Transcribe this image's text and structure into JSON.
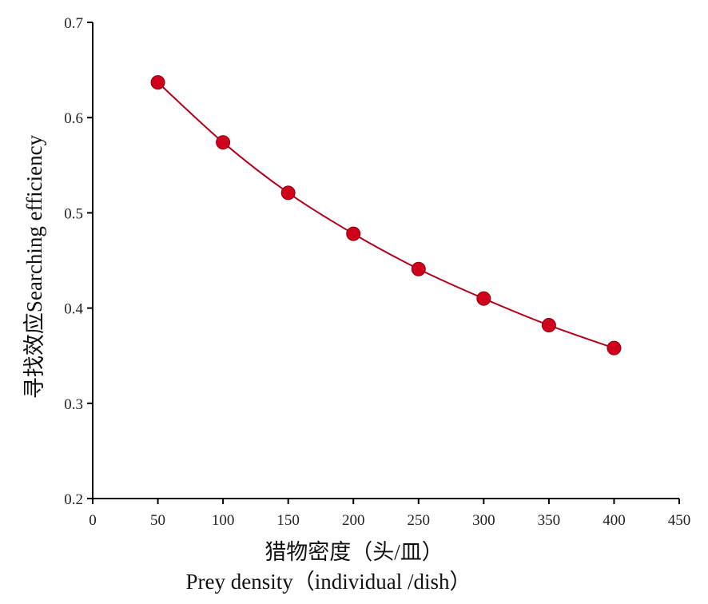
{
  "chart_data": {
    "type": "line",
    "xlabel_cn": "猎物密度（头/皿）",
    "xlabel_en": "Prey density（individual /dish）",
    "ylabel": "寻找效应Searching efficiency",
    "xlim": [
      0,
      450
    ],
    "ylim": [
      0.2,
      0.7
    ],
    "x_ticks": [
      "0",
      "50",
      "100",
      "150",
      "200",
      "250",
      "300",
      "350",
      "400",
      "450"
    ],
    "y_ticks": [
      "0.2",
      "0.3",
      "0.4",
      "0.5",
      "0.6",
      "0.7"
    ],
    "x_tick_values": [
      0,
      50,
      100,
      150,
      200,
      250,
      300,
      350,
      400,
      450
    ],
    "y_tick_values": [
      0.2,
      0.3,
      0.4,
      0.5,
      0.6,
      0.7
    ],
    "grid": false,
    "series": [
      {
        "x": [
          50,
          100,
          150,
          200,
          250,
          300,
          350,
          400
        ],
        "y": [
          0.637,
          0.574,
          0.521,
          0.478,
          0.441,
          0.41,
          0.382,
          0.358
        ],
        "color": "#d0021b",
        "line_color": "#b3001b"
      }
    ]
  }
}
